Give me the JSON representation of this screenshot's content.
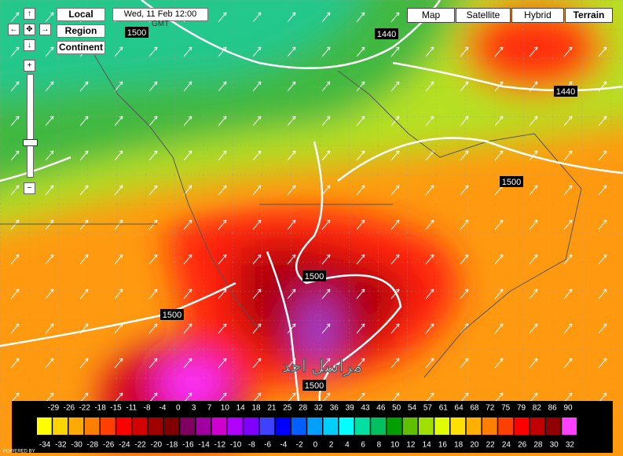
{
  "controls": {
    "local": "Local",
    "region": "Region",
    "continent": "Continent",
    "date": "Wed, 11 Feb 12:00",
    "timezone": "GMT"
  },
  "map_types": [
    "Map",
    "Satellite",
    "Hybrid",
    "Terrain"
  ],
  "contour_labels": [
    "1500",
    "1440",
    "1440",
    "1500",
    "1500",
    "1500",
    "1500"
  ],
  "watermark": "مراسل احد",
  "legend": {
    "fahrenheit": [
      -29,
      -26,
      -22,
      -18,
      -15,
      -11,
      -8,
      -4,
      0,
      3,
      7,
      10,
      14,
      18,
      21,
      25,
      28,
      32,
      36,
      39,
      43,
      46,
      50,
      54,
      57,
      61,
      64,
      68,
      72,
      75,
      79,
      82,
      86,
      90
    ],
    "celsius": [
      -34,
      -32,
      -30,
      -28,
      -26,
      -24,
      -22,
      -20,
      -18,
      -16,
      -14,
      -12,
      -10,
      -8,
      -6,
      -4,
      -2,
      0,
      2,
      4,
      6,
      8,
      10,
      12,
      14,
      16,
      18,
      20,
      22,
      24,
      26,
      28,
      30,
      32
    ],
    "colors": [
      "#ffff00",
      "#ffd400",
      "#ffaa00",
      "#ff8000",
      "#ff4000",
      "#ff0000",
      "#d40000",
      "#a00000",
      "#800000",
      "#800060",
      "#a000a0",
      "#d000d0",
      "#b000ff",
      "#8000ff",
      "#4040ff",
      "#0000ff",
      "#0060ff",
      "#00a0ff",
      "#00d0ff",
      "#00ffff",
      "#00e0a0",
      "#00c060",
      "#00a000",
      "#60c000",
      "#a0e000",
      "#e0ff00",
      "#ffe000",
      "#ffb000",
      "#ff8000",
      "#ff4000",
      "#ff0000",
      "#c00000",
      "#900000",
      "#ff40ff"
    ]
  },
  "footer": "POWERED BY"
}
